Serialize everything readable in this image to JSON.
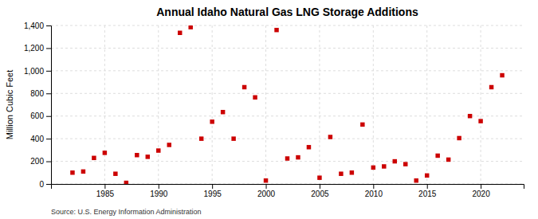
{
  "chart_data": {
    "type": "scatter",
    "title": "Annual Idaho Natural Gas LNG Storage Additions",
    "ylabel": "Million Cubic Feet",
    "annotation": "Source: U.S. Energy Information Administration",
    "x": [
      1982,
      1983,
      1984,
      1985,
      1986,
      1987,
      1988,
      1989,
      1990,
      1991,
      1992,
      1993,
      1994,
      1995,
      1996,
      1997,
      1998,
      1999,
      2000,
      2001,
      2002,
      2003,
      2004,
      2005,
      2006,
      2007,
      2008,
      2009,
      2010,
      2011,
      2012,
      2013,
      2014,
      2015,
      2016,
      2017,
      2018,
      2019,
      2020,
      2021,
      2022
    ],
    "values": [
      100,
      110,
      230,
      275,
      90,
      10,
      255,
      240,
      295,
      345,
      1335,
      1385,
      400,
      550,
      635,
      400,
      855,
      765,
      30,
      1360,
      225,
      235,
      325,
      55,
      415,
      90,
      100,
      525,
      145,
      155,
      200,
      175,
      30,
      75,
      250,
      215,
      405,
      600,
      555,
      855,
      960
    ],
    "color": "#cc0000",
    "marker": "square",
    "xlim": [
      1980,
      2024
    ],
    "ylim": [
      0,
      1400
    ],
    "xticks": [
      1985,
      1990,
      1995,
      2000,
      2005,
      2010,
      2015,
      2020
    ],
    "yticks": [
      0,
      200,
      400,
      600,
      800,
      {
        "value": 1000,
        "label": "1,000"
      },
      {
        "value": 1200,
        "label": "1,200"
      },
      {
        "value": 1400,
        "label": "1,400"
      }
    ],
    "grid": true
  }
}
